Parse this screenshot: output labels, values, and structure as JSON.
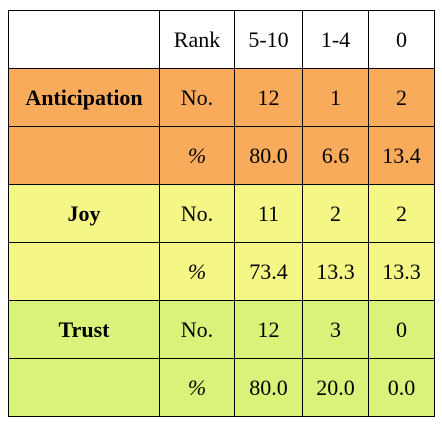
{
  "header": {
    "blank": "",
    "rank": "Rank",
    "col1": "5-10",
    "col2": "1-4",
    "col3": "0"
  },
  "colors": {
    "header": "#ffffff",
    "anticipation": "#f9ab5c",
    "joy": "#f4f786",
    "trust": "#d9f27a"
  },
  "rows": [
    {
      "emotion": "Anticipation",
      "metric": "No.",
      "v1": "12",
      "v2": "1",
      "v3": "2"
    },
    {
      "emotion": "",
      "metric": "%",
      "v1": "80.0",
      "v2": "6.6",
      "v3": "13.4"
    },
    {
      "emotion": "Joy",
      "metric": "No.",
      "v1": "11",
      "v2": "2",
      "v3": "2"
    },
    {
      "emotion": "",
      "metric": "%",
      "v1": "73.4",
      "v2": "13.3",
      "v3": "13.3"
    },
    {
      "emotion": "Trust",
      "metric": "No.",
      "v1": "12",
      "v2": "3",
      "v3": "0"
    },
    {
      "emotion": "",
      "metric": "%",
      "v1": "80.0",
      "v2": "20.0",
      "v3": "0.0"
    }
  ]
}
